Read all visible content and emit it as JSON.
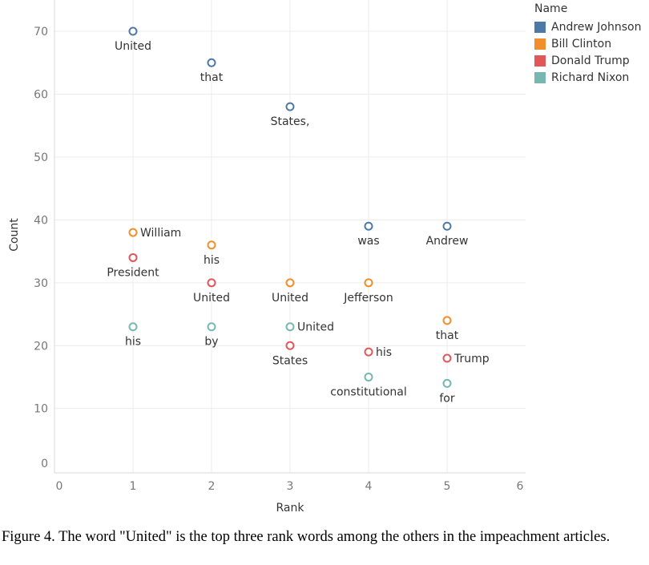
{
  "chart_data": {
    "type": "scatter",
    "xlabel": "Rank",
    "ylabel": "Count",
    "xlim": [
      0,
      6
    ],
    "ylim": [
      0,
      72
    ],
    "x_ticks": [
      "0",
      "1",
      "2",
      "3",
      "4",
      "5",
      "6"
    ],
    "y_ticks": [
      "0",
      "10",
      "20",
      "30",
      "40",
      "50",
      "60",
      "70"
    ],
    "grid": true,
    "legend": {
      "title": "Name",
      "placement": "top-right"
    },
    "series": [
      {
        "name": "Andrew Johnson",
        "color": "#4e79a7",
        "points": [
          {
            "x": 1,
            "y": 70,
            "label": "United"
          },
          {
            "x": 2,
            "y": 65,
            "label": "that"
          },
          {
            "x": 3,
            "y": 58,
            "label": "States,"
          },
          {
            "x": 4,
            "y": 39,
            "label": "was"
          },
          {
            "x": 5,
            "y": 39,
            "label": "Andrew"
          }
        ]
      },
      {
        "name": "Bill Clinton",
        "color": "#f28e2b",
        "points": [
          {
            "x": 1,
            "y": 38,
            "label": "William"
          },
          {
            "x": 2,
            "y": 36,
            "label": "his"
          },
          {
            "x": 3,
            "y": 30,
            "label": "United"
          },
          {
            "x": 4,
            "y": 30,
            "label": "Jefferson"
          },
          {
            "x": 5,
            "y": 24,
            "label": "that"
          }
        ]
      },
      {
        "name": "Donald Trump",
        "color": "#e15759",
        "points": [
          {
            "x": 1,
            "y": 34,
            "label": "President"
          },
          {
            "x": 2,
            "y": 30,
            "label": "United"
          },
          {
            "x": 3,
            "y": 20,
            "label": "States"
          },
          {
            "x": 4,
            "y": 19,
            "label": "his"
          },
          {
            "x": 5,
            "y": 18,
            "label": "Trump"
          }
        ]
      },
      {
        "name": "Richard Nixon",
        "color": "#76b7b2",
        "points": [
          {
            "x": 1,
            "y": 23,
            "label": "his"
          },
          {
            "x": 2,
            "y": 23,
            "label": "by"
          },
          {
            "x": 3,
            "y": 23,
            "label": "United"
          },
          {
            "x": 4,
            "y": 15,
            "label": "constitutional"
          },
          {
            "x": 5,
            "y": 14,
            "label": "for"
          }
        ]
      }
    ]
  },
  "caption": "Figure 4. The word \"United\" is the top three rank words among the others in the impeachment articles."
}
